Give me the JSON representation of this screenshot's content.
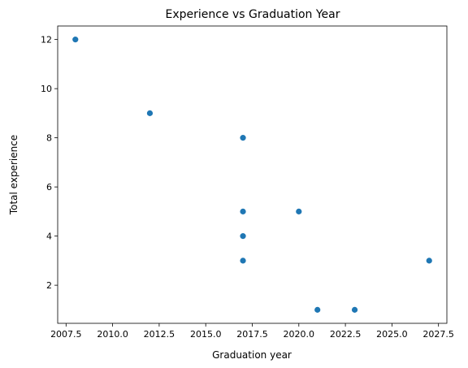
{
  "chart_data": {
    "type": "scatter",
    "title": "Experience vs Graduation Year",
    "xlabel": "Graduation year",
    "ylabel": "Total experience",
    "xlim": [
      2007.05,
      2027.95
    ],
    "ylim": [
      0.45,
      12.55
    ],
    "xticks": [
      2007.5,
      2010.0,
      2012.5,
      2015.0,
      2017.5,
      2020.0,
      2022.5,
      2025.0,
      2027.5
    ],
    "xtick_labels": [
      "2007.5",
      "2010.0",
      "2012.5",
      "2015.0",
      "2017.5",
      "2020.0",
      "2022.5",
      "2025.0",
      "2027.5"
    ],
    "yticks": [
      2,
      4,
      6,
      8,
      10,
      12
    ],
    "ytick_labels": [
      "2",
      "4",
      "6",
      "8",
      "10",
      "12"
    ],
    "grid": false,
    "marker_color": "#1f77b4",
    "points": [
      {
        "x": 2008,
        "y": 12
      },
      {
        "x": 2012,
        "y": 9
      },
      {
        "x": 2017,
        "y": 8
      },
      {
        "x": 2017,
        "y": 5
      },
      {
        "x": 2017,
        "y": 4
      },
      {
        "x": 2017,
        "y": 3
      },
      {
        "x": 2020,
        "y": 5
      },
      {
        "x": 2021,
        "y": 1
      },
      {
        "x": 2023,
        "y": 1
      },
      {
        "x": 2027,
        "y": 3
      }
    ]
  }
}
